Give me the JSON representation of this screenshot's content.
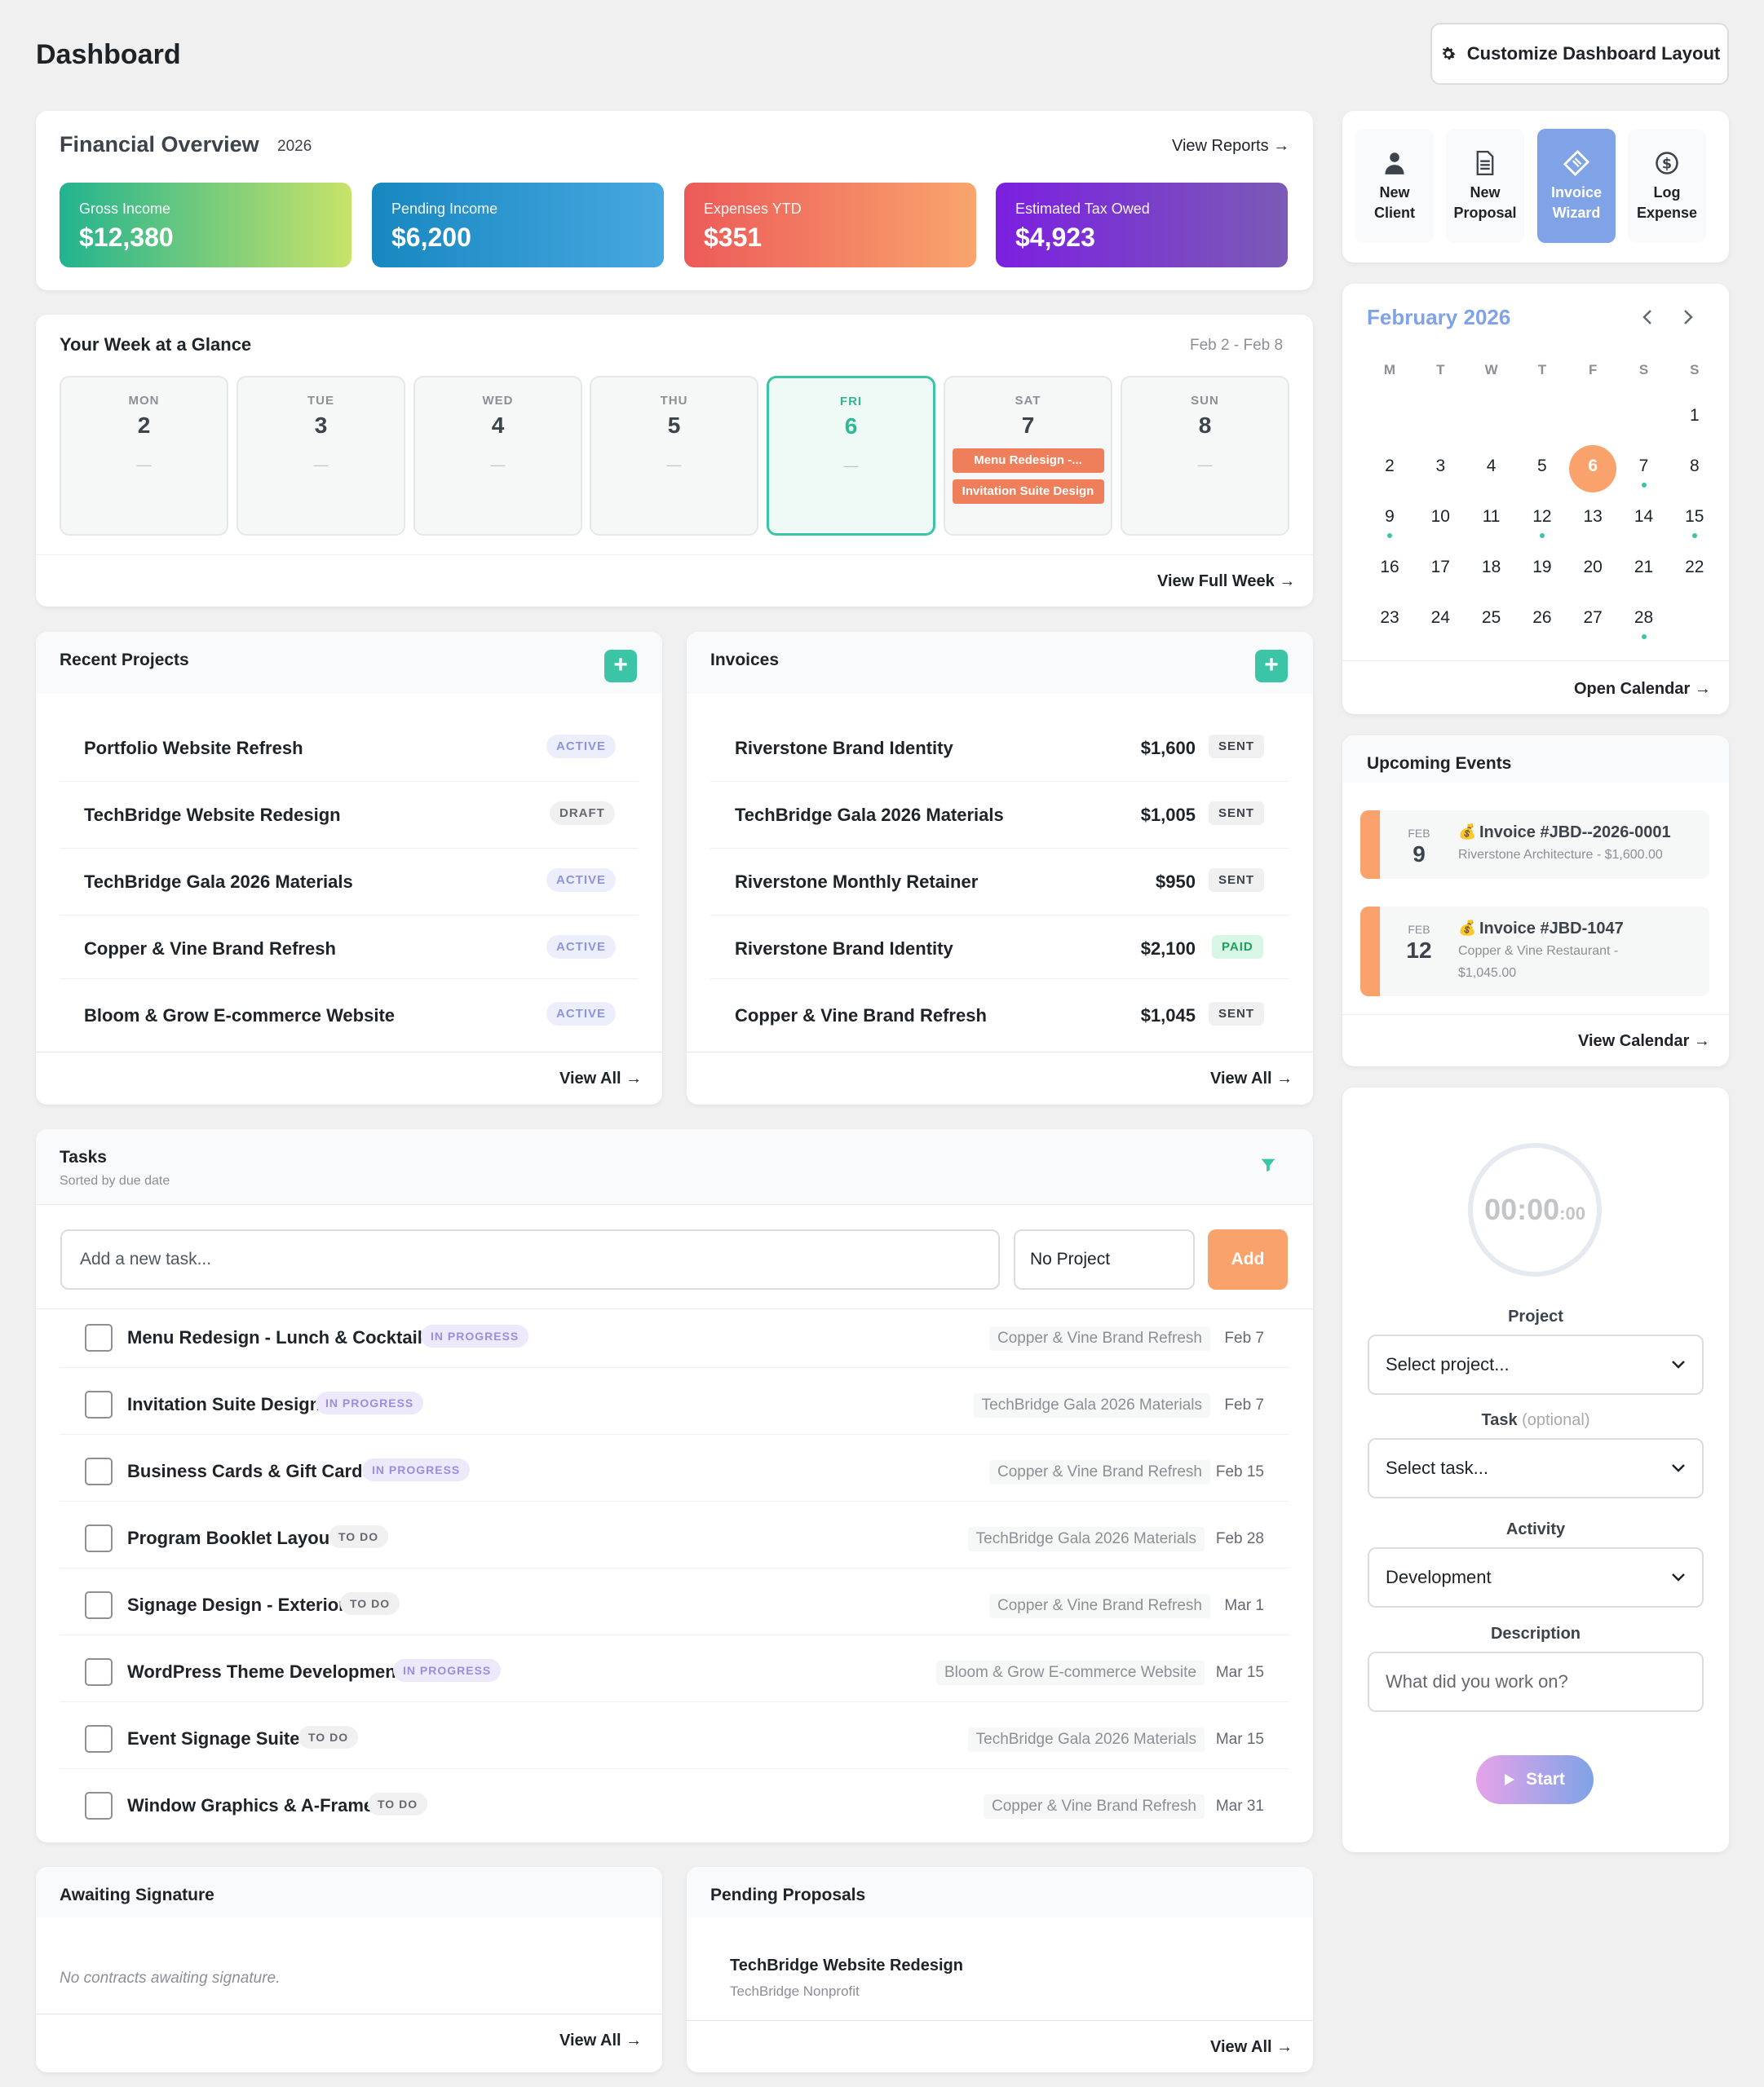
{
  "page_title": "Dashboard",
  "customize_label": "Customize Dashboard Layout",
  "financial": {
    "title": "Financial Overview",
    "year": "2026",
    "view_reports": "View Reports →",
    "stats": [
      {
        "label": "Gross Income",
        "value": "$12,380"
      },
      {
        "label": "Pending Income",
        "value": "$6,200"
      },
      {
        "label": "Expenses YTD",
        "value": "$351"
      },
      {
        "label": "Estimated Tax Owed",
        "value": "$4,923"
      }
    ]
  },
  "week": {
    "title": "Your Week at a Glance",
    "range": "Feb 2 - Feb 8",
    "days": [
      {
        "name": "MON",
        "num": "2",
        "dash": "—"
      },
      {
        "name": "TUE",
        "num": "3",
        "dash": "—"
      },
      {
        "name": "WED",
        "num": "4",
        "dash": "—"
      },
      {
        "name": "THU",
        "num": "5",
        "dash": "—"
      },
      {
        "name": "FRI",
        "num": "6",
        "dash": "—"
      },
      {
        "name": "SAT",
        "num": "7"
      },
      {
        "name": "SUN",
        "num": "8",
        "dash": "—"
      }
    ],
    "sat_events": [
      "Menu Redesign -...",
      "Invitation Suite Design"
    ],
    "view_full": "View Full Week →"
  },
  "projects": {
    "title": "Recent Projects",
    "add": "+",
    "items": [
      {
        "name": "Portfolio Website Refresh",
        "status": "ACTIVE"
      },
      {
        "name": "TechBridge Website Redesign",
        "status": "DRAFT"
      },
      {
        "name": "TechBridge Gala 2026 Materials",
        "status": "ACTIVE"
      },
      {
        "name": "Copper & Vine Brand Refresh",
        "status": "ACTIVE"
      },
      {
        "name": "Bloom & Grow E-commerce Website",
        "status": "ACTIVE"
      }
    ],
    "view_all": "View All →"
  },
  "invoices": {
    "title": "Invoices",
    "add": "+",
    "items": [
      {
        "name": "Riverstone Brand Identity",
        "amount": "$1,600",
        "status": "SENT"
      },
      {
        "name": "TechBridge Gala 2026 Materials",
        "amount": "$1,005",
        "status": "SENT"
      },
      {
        "name": "Riverstone Monthly Retainer",
        "amount": "$950",
        "status": "SENT"
      },
      {
        "name": "Riverstone Brand Identity",
        "amount": "$2,100",
        "status": "PAID"
      },
      {
        "name": "Copper & Vine Brand Refresh",
        "amount": "$1,045",
        "status": "SENT"
      }
    ],
    "view_all": "View All →"
  },
  "tasks": {
    "title": "Tasks",
    "subtitle": "Sorted by due date",
    "input_placeholder": "Add a new task...",
    "project_select": "No Project",
    "add_label": "Add",
    "items": [
      {
        "name": "Menu Redesign - Lunch & Cocktails",
        "status": "IN PROGRESS",
        "project": "Copper & Vine Brand Refresh",
        "date": "Feb 7"
      },
      {
        "name": "Invitation Suite Design",
        "status": "IN PROGRESS",
        "project": "TechBridge Gala 2026 Materials",
        "date": "Feb 7"
      },
      {
        "name": "Business Cards & Gift Cards",
        "status": "IN PROGRESS",
        "project": "Copper & Vine Brand Refresh",
        "date": "Feb 15"
      },
      {
        "name": "Program Booklet Layout",
        "status": "TO DO",
        "project": "TechBridge Gala 2026 Materials",
        "date": "Feb 28"
      },
      {
        "name": "Signage Design - Exterior",
        "status": "TO DO",
        "project": "Copper & Vine Brand Refresh",
        "date": "Mar 1"
      },
      {
        "name": "WordPress Theme Development",
        "status": "IN PROGRESS",
        "project": "Bloom & Grow E-commerce Website",
        "date": "Mar 15"
      },
      {
        "name": "Event Signage Suite",
        "status": "TO DO",
        "project": "TechBridge Gala 2026 Materials",
        "date": "Mar 15"
      },
      {
        "name": "Window Graphics & A-Frame",
        "status": "TO DO",
        "project": "Copper & Vine Brand Refresh",
        "date": "Mar 31"
      }
    ]
  },
  "signature": {
    "title": "Awaiting Signature",
    "empty": "No contracts awaiting signature.",
    "view_all": "View All →"
  },
  "proposals": {
    "title": "Pending Proposals",
    "item_title": "TechBridge Website Redesign",
    "item_client": "TechBridge Nonprofit",
    "view_all": "View All →"
  },
  "quick_actions": [
    {
      "line1": "New",
      "line2": "Client",
      "icon": "user-icon"
    },
    {
      "line1": "New",
      "line2": "Proposal",
      "icon": "document-icon"
    },
    {
      "line1": "Invoice",
      "line2": "Wizard",
      "icon": "ticket-icon"
    },
    {
      "line1": "Log",
      "line2": "Expense",
      "icon": "dollar-icon"
    }
  ],
  "calendar": {
    "title": "February 2026",
    "weekdays": [
      "M",
      "T",
      "W",
      "T",
      "F",
      "S",
      "S"
    ],
    "weeks": [
      [
        "",
        "",
        "",
        "",
        "",
        "",
        "1"
      ],
      [
        "2",
        "3",
        "4",
        "5",
        "6",
        "7",
        "8"
      ],
      [
        "9",
        "10",
        "11",
        "12",
        "13",
        "14",
        "15"
      ],
      [
        "16",
        "17",
        "18",
        "19",
        "20",
        "21",
        "22"
      ],
      [
        "23",
        "24",
        "25",
        "26",
        "27",
        "28",
        ""
      ]
    ],
    "today": "6",
    "dot_days": [
      "7",
      "9",
      "12",
      "15",
      "28"
    ],
    "open_label": "Open Calendar →"
  },
  "upcoming": {
    "title": "Upcoming Events",
    "events": [
      {
        "month": "FEB",
        "day": "9",
        "title": "Invoice #JBD--2026-0001",
        "sub1": "Riverstone Architecture - $1,600.00",
        "sub2": ""
      },
      {
        "month": "FEB",
        "day": "12",
        "title": "Invoice #JBD-1047",
        "sub1": "Copper & Vine Restaurant -",
        "sub2": "$1,045.00"
      }
    ],
    "view_label": "View Calendar →"
  },
  "timer": {
    "time_main": "00:00",
    "time_sec": ":00",
    "project_label": "Project",
    "project_value": "Select project...",
    "task_label": "Task",
    "task_optional": "(optional)",
    "task_value": "Select task...",
    "activity_label": "Activity",
    "activity_value": "Development",
    "description_label": "Description",
    "description_placeholder": "What did you work on?",
    "start_label": "Start"
  },
  "colors": {
    "accent": "#3bc4a5",
    "orange": "#f9a26c"
  }
}
